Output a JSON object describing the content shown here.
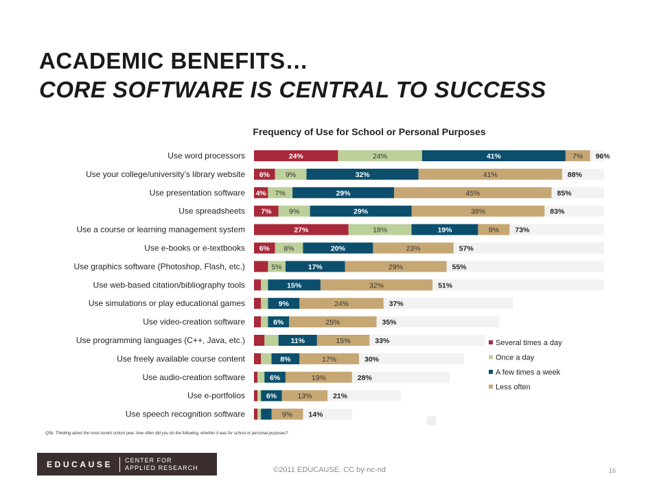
{
  "slide": {
    "title_line1": "ACADEMIC BENEFITS…",
    "title_line2": "CORE SOFTWARE IS CENTRAL TO SUCCESS",
    "footnote": "Q5b. Thinking about the most recent school year, how often did you do the following, whether it was for school or personal purposes?",
    "logo_word": "EDUCAUSE",
    "logo_sub_1": "CENTER FOR",
    "logo_sub_2": "APPLIED RESEARCH",
    "copyright": "©2011 EDUCAUSE. CC by-nc-nd",
    "page_number": "16"
  },
  "chart_data": {
    "type": "bar",
    "orientation": "horizontal-stacked",
    "title": "Frequency of Use for School or Personal Purposes",
    "xlim": [
      0,
      100
    ],
    "categories": [
      "Use word processors",
      "Use your college/university’s library website",
      "Use presentation software",
      "Use spreadsheets",
      "Use a course or learning management system",
      "Use e-books or e-textbooks",
      "Use graphics software (Photoshop, Flash, etc.)",
      "Use web-based citation/bibliography tools",
      "Use simulations or play educational games",
      "Use video-creation software",
      "Use programming languages (C++, Java, etc.)",
      "Use freely available course content",
      "Use audio-creation software",
      "Use e-portfolios",
      "Use speech recognition software"
    ],
    "series": [
      {
        "name": "Several times a day",
        "color": "#a8293a",
        "values": [
          24,
          6,
          4,
          7,
          27,
          6,
          4,
          2,
          2,
          2,
          3,
          2,
          1,
          1,
          1
        ],
        "labels": [
          "24%",
          "6%",
          "4%",
          "7%",
          "27%",
          "6%",
          "",
          "",
          "",
          "",
          "",
          "",
          "",
          "",
          ""
        ]
      },
      {
        "name": "Once a day",
        "color": "#bcd09a",
        "values": [
          24,
          9,
          7,
          9,
          18,
          8,
          5,
          2,
          2,
          2,
          4,
          3,
          2,
          1,
          1
        ],
        "labels": [
          "24%",
          "9%",
          "7%",
          "9%",
          "18%",
          "8%",
          "5%",
          "",
          "",
          "",
          "",
          "",
          "",
          "",
          ""
        ]
      },
      {
        "name": "A few times a week",
        "color": "#0b4f6c",
        "values": [
          41,
          32,
          29,
          29,
          19,
          20,
          17,
          15,
          9,
          6,
          11,
          8,
          6,
          6,
          3
        ],
        "labels": [
          "41%",
          "32%",
          "29%",
          "29%",
          "19%",
          "20%",
          "17%",
          "15%",
          "9%",
          "6%",
          "11%",
          "8%",
          "6%",
          "6%",
          ""
        ]
      },
      {
        "name": "Less often",
        "color": "#c6a774",
        "values": [
          7,
          41,
          45,
          38,
          9,
          23,
          29,
          32,
          24,
          25,
          15,
          17,
          19,
          13,
          9
        ],
        "labels": [
          "7%",
          "41%",
          "45%",
          "38%",
          "9%",
          "23%",
          "29%",
          "32%",
          "24%",
          "25%",
          "15%",
          "17%",
          "19%",
          "13%",
          "9%"
        ]
      }
    ],
    "totals": [
      "96%",
      "88%",
      "85%",
      "83%",
      "73%",
      "57%",
      "55%",
      "51%",
      "37%",
      "35%",
      "33%",
      "30%",
      "28%",
      "21%",
      "14%"
    ],
    "background_bar_values": [
      100,
      100,
      100,
      100,
      100,
      100,
      100,
      100,
      74,
      70,
      66,
      60,
      56,
      42,
      28
    ],
    "background_bar_color": "#f2f2f2",
    "legend_position": "bottom-right",
    "grid": false
  }
}
